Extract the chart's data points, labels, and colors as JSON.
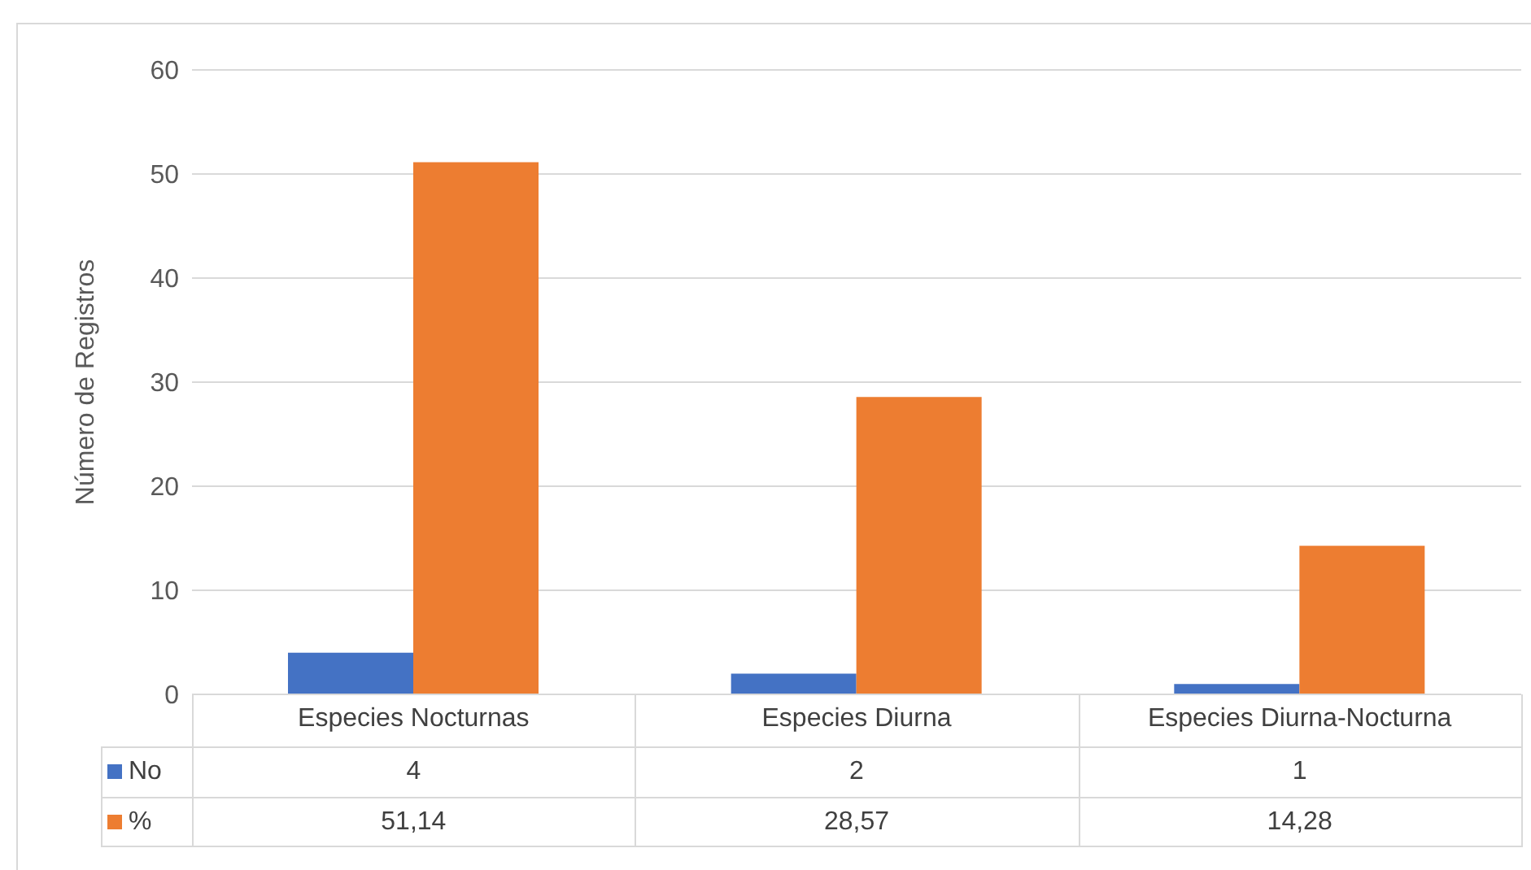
{
  "chart_data": {
    "type": "bar",
    "ylabel": "Número de Registros",
    "categories": [
      "Especies Nocturnas",
      "Especies Diurna",
      "Especies Diurna-Nocturna"
    ],
    "series": [
      {
        "name": "No",
        "color": "#4472c4",
        "values": [
          4,
          2,
          1
        ],
        "value_labels": [
          "4",
          "2",
          "1"
        ]
      },
      {
        "name": "%",
        "color": "#ed7d31",
        "values": [
          51.14,
          28.57,
          14.28
        ],
        "value_labels": [
          "51,14",
          "28,57",
          "14,28"
        ]
      }
    ],
    "ylim": [
      0,
      60
    ],
    "yticks": [
      0,
      10,
      20,
      30,
      40,
      50,
      60
    ],
    "grid": "y",
    "legend": "bottom"
  }
}
